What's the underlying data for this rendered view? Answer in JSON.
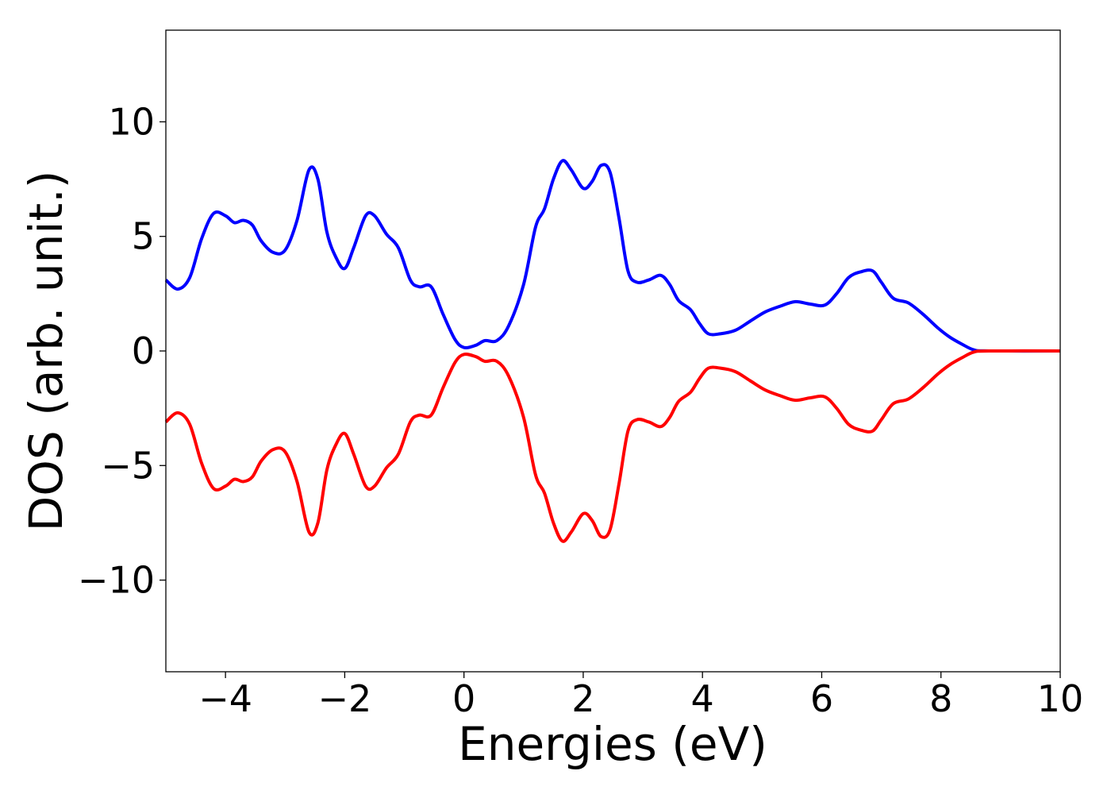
{
  "chart_data": {
    "type": "line",
    "title": "",
    "xlabel": "Energies (eV)",
    "ylabel": "DOS (arb. unit.)",
    "xlim": [
      -5,
      10
    ],
    "ylim": [
      -14,
      14
    ],
    "xticks": [
      -4,
      -2,
      0,
      2,
      4,
      6,
      8,
      10
    ],
    "xtick_labels": [
      "−4",
      "−2",
      "0",
      "2",
      "4",
      "6",
      "8",
      "10"
    ],
    "yticks": [
      -10,
      -5,
      0,
      5,
      10
    ],
    "ytick_labels": [
      "−10",
      "−5",
      "0",
      "5",
      "10"
    ],
    "grid": false,
    "legend": "none",
    "series": [
      {
        "color": "#0000ff",
        "points": [
          [
            -5.0,
            3.1
          ],
          [
            -4.8,
            2.7
          ],
          [
            -4.6,
            3.2
          ],
          [
            -4.4,
            4.9
          ],
          [
            -4.2,
            6.0
          ],
          [
            -4.0,
            5.9
          ],
          [
            -3.85,
            5.6
          ],
          [
            -3.7,
            5.7
          ],
          [
            -3.55,
            5.5
          ],
          [
            -3.4,
            4.8
          ],
          [
            -3.2,
            4.3
          ],
          [
            -3.0,
            4.4
          ],
          [
            -2.8,
            5.7
          ],
          [
            -2.6,
            7.9
          ],
          [
            -2.45,
            7.5
          ],
          [
            -2.3,
            5.2
          ],
          [
            -2.15,
            4.1
          ],
          [
            -2.0,
            3.6
          ],
          [
            -1.85,
            4.5
          ],
          [
            -1.65,
            5.9
          ],
          [
            -1.5,
            5.9
          ],
          [
            -1.3,
            5.1
          ],
          [
            -1.1,
            4.5
          ],
          [
            -0.9,
            3.1
          ],
          [
            -0.75,
            2.8
          ],
          [
            -0.55,
            2.8
          ],
          [
            -0.35,
            1.6
          ],
          [
            -0.15,
            0.5
          ],
          [
            0.0,
            0.15
          ],
          [
            0.2,
            0.25
          ],
          [
            0.35,
            0.45
          ],
          [
            0.55,
            0.45
          ],
          [
            0.75,
            1.1
          ],
          [
            1.0,
            2.9
          ],
          [
            1.2,
            5.4
          ],
          [
            1.35,
            6.2
          ],
          [
            1.5,
            7.5
          ],
          [
            1.65,
            8.3
          ],
          [
            1.8,
            7.9
          ],
          [
            2.0,
            7.1
          ],
          [
            2.15,
            7.4
          ],
          [
            2.3,
            8.1
          ],
          [
            2.45,
            7.8
          ],
          [
            2.6,
            5.8
          ],
          [
            2.75,
            3.5
          ],
          [
            2.9,
            3.0
          ],
          [
            3.1,
            3.1
          ],
          [
            3.3,
            3.3
          ],
          [
            3.45,
            2.9
          ],
          [
            3.6,
            2.2
          ],
          [
            3.8,
            1.8
          ],
          [
            3.95,
            1.2
          ],
          [
            4.1,
            0.75
          ],
          [
            4.3,
            0.75
          ],
          [
            4.55,
            0.9
          ],
          [
            4.8,
            1.3
          ],
          [
            5.05,
            1.7
          ],
          [
            5.3,
            1.95
          ],
          [
            5.55,
            2.15
          ],
          [
            5.8,
            2.05
          ],
          [
            6.05,
            2.0
          ],
          [
            6.25,
            2.5
          ],
          [
            6.45,
            3.2
          ],
          [
            6.65,
            3.45
          ],
          [
            6.85,
            3.5
          ],
          [
            7.0,
            3.0
          ],
          [
            7.2,
            2.3
          ],
          [
            7.45,
            2.1
          ],
          [
            7.7,
            1.6
          ],
          [
            7.95,
            1.0
          ],
          [
            8.15,
            0.6
          ],
          [
            8.35,
            0.3
          ],
          [
            8.55,
            0.05
          ],
          [
            8.8,
            0.0
          ],
          [
            10.0,
            0.0
          ]
        ]
      },
      {
        "color": "#ff0000",
        "points": [
          [
            -5.0,
            -3.1
          ],
          [
            -4.8,
            -2.7
          ],
          [
            -4.6,
            -3.2
          ],
          [
            -4.4,
            -4.9
          ],
          [
            -4.2,
            -6.0
          ],
          [
            -4.0,
            -5.9
          ],
          [
            -3.85,
            -5.6
          ],
          [
            -3.7,
            -5.7
          ],
          [
            -3.55,
            -5.5
          ],
          [
            -3.4,
            -4.8
          ],
          [
            -3.2,
            -4.3
          ],
          [
            -3.0,
            -4.4
          ],
          [
            -2.8,
            -5.7
          ],
          [
            -2.6,
            -7.9
          ],
          [
            -2.45,
            -7.5
          ],
          [
            -2.3,
            -5.2
          ],
          [
            -2.15,
            -4.1
          ],
          [
            -2.0,
            -3.6
          ],
          [
            -1.85,
            -4.5
          ],
          [
            -1.65,
            -5.9
          ],
          [
            -1.5,
            -5.9
          ],
          [
            -1.3,
            -5.1
          ],
          [
            -1.1,
            -4.5
          ],
          [
            -0.9,
            -3.1
          ],
          [
            -0.75,
            -2.8
          ],
          [
            -0.55,
            -2.8
          ],
          [
            -0.35,
            -1.6
          ],
          [
            -0.15,
            -0.5
          ],
          [
            0.0,
            -0.15
          ],
          [
            0.2,
            -0.25
          ],
          [
            0.35,
            -0.45
          ],
          [
            0.55,
            -0.45
          ],
          [
            0.75,
            -1.1
          ],
          [
            1.0,
            -2.9
          ],
          [
            1.2,
            -5.4
          ],
          [
            1.35,
            -6.2
          ],
          [
            1.5,
            -7.5
          ],
          [
            1.65,
            -8.3
          ],
          [
            1.8,
            -7.9
          ],
          [
            2.0,
            -7.1
          ],
          [
            2.15,
            -7.4
          ],
          [
            2.3,
            -8.1
          ],
          [
            2.45,
            -7.8
          ],
          [
            2.6,
            -5.8
          ],
          [
            2.75,
            -3.5
          ],
          [
            2.9,
            -3.0
          ],
          [
            3.1,
            -3.1
          ],
          [
            3.3,
            -3.3
          ],
          [
            3.45,
            -2.9
          ],
          [
            3.6,
            -2.2
          ],
          [
            3.8,
            -1.8
          ],
          [
            3.95,
            -1.2
          ],
          [
            4.1,
            -0.75
          ],
          [
            4.3,
            -0.75
          ],
          [
            4.55,
            -0.9
          ],
          [
            4.8,
            -1.3
          ],
          [
            5.05,
            -1.7
          ],
          [
            5.3,
            -1.95
          ],
          [
            5.55,
            -2.15
          ],
          [
            5.8,
            -2.05
          ],
          [
            6.05,
            -2.0
          ],
          [
            6.25,
            -2.5
          ],
          [
            6.45,
            -3.2
          ],
          [
            6.65,
            -3.45
          ],
          [
            6.85,
            -3.5
          ],
          [
            7.0,
            -3.0
          ],
          [
            7.2,
            -2.3
          ],
          [
            7.45,
            -2.1
          ],
          [
            7.7,
            -1.6
          ],
          [
            7.95,
            -1.0
          ],
          [
            8.15,
            -0.6
          ],
          [
            8.35,
            -0.3
          ],
          [
            8.55,
            -0.05
          ],
          [
            8.8,
            0.0
          ],
          [
            10.0,
            0.0
          ]
        ]
      }
    ]
  }
}
